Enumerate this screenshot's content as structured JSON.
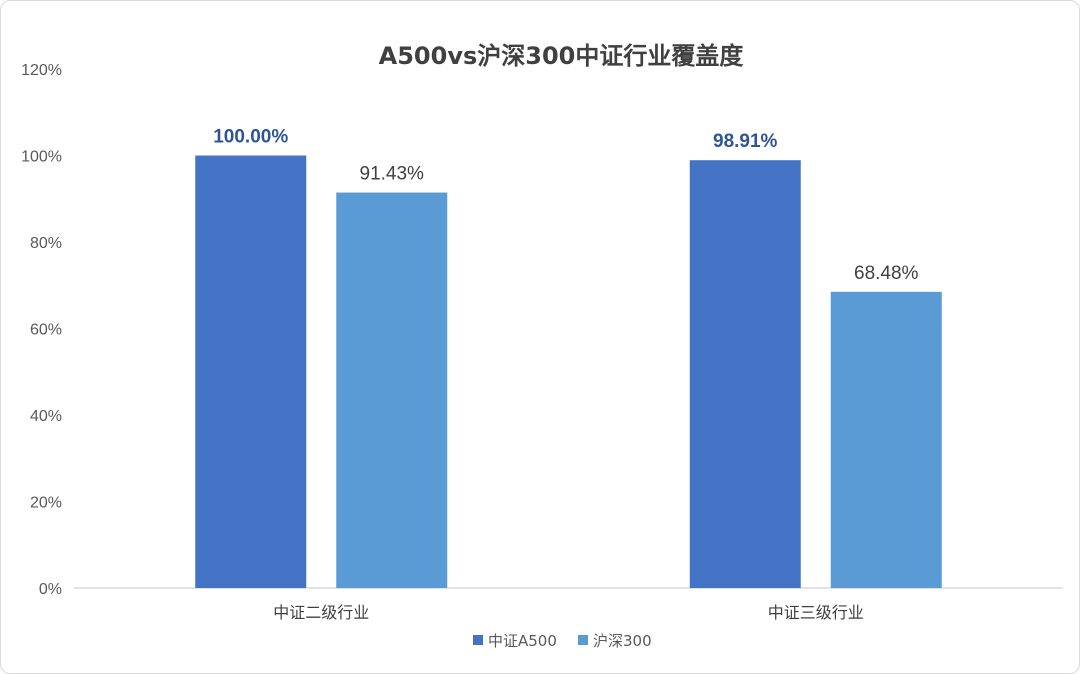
{
  "chart_data": {
    "type": "bar",
    "title": "A500vs沪深300中证行业覆盖度",
    "categories": [
      "中证二级行业",
      "中证三级行业"
    ],
    "series": [
      {
        "name": "中证A500",
        "values": [
          100.0,
          98.91
        ],
        "labels": [
          "100.00%",
          "98.91%"
        ],
        "color": "#4472C4",
        "label_color": "#2F5597",
        "label_bold": true
      },
      {
        "name": "沪深300",
        "values": [
          91.43,
          68.48
        ],
        "labels": [
          "91.43%",
          "68.48%"
        ],
        "color": "#5B9BD5",
        "label_color": "#404040",
        "label_bold": false
      }
    ],
    "ylim": [
      0,
      120
    ],
    "yticks": [
      0,
      20,
      40,
      60,
      80,
      100,
      120
    ],
    "ytick_labels": [
      "0%",
      "20%",
      "40%",
      "60%",
      "80%",
      "100%",
      "120%"
    ],
    "grid": false,
    "legend": "bottom-center"
  }
}
